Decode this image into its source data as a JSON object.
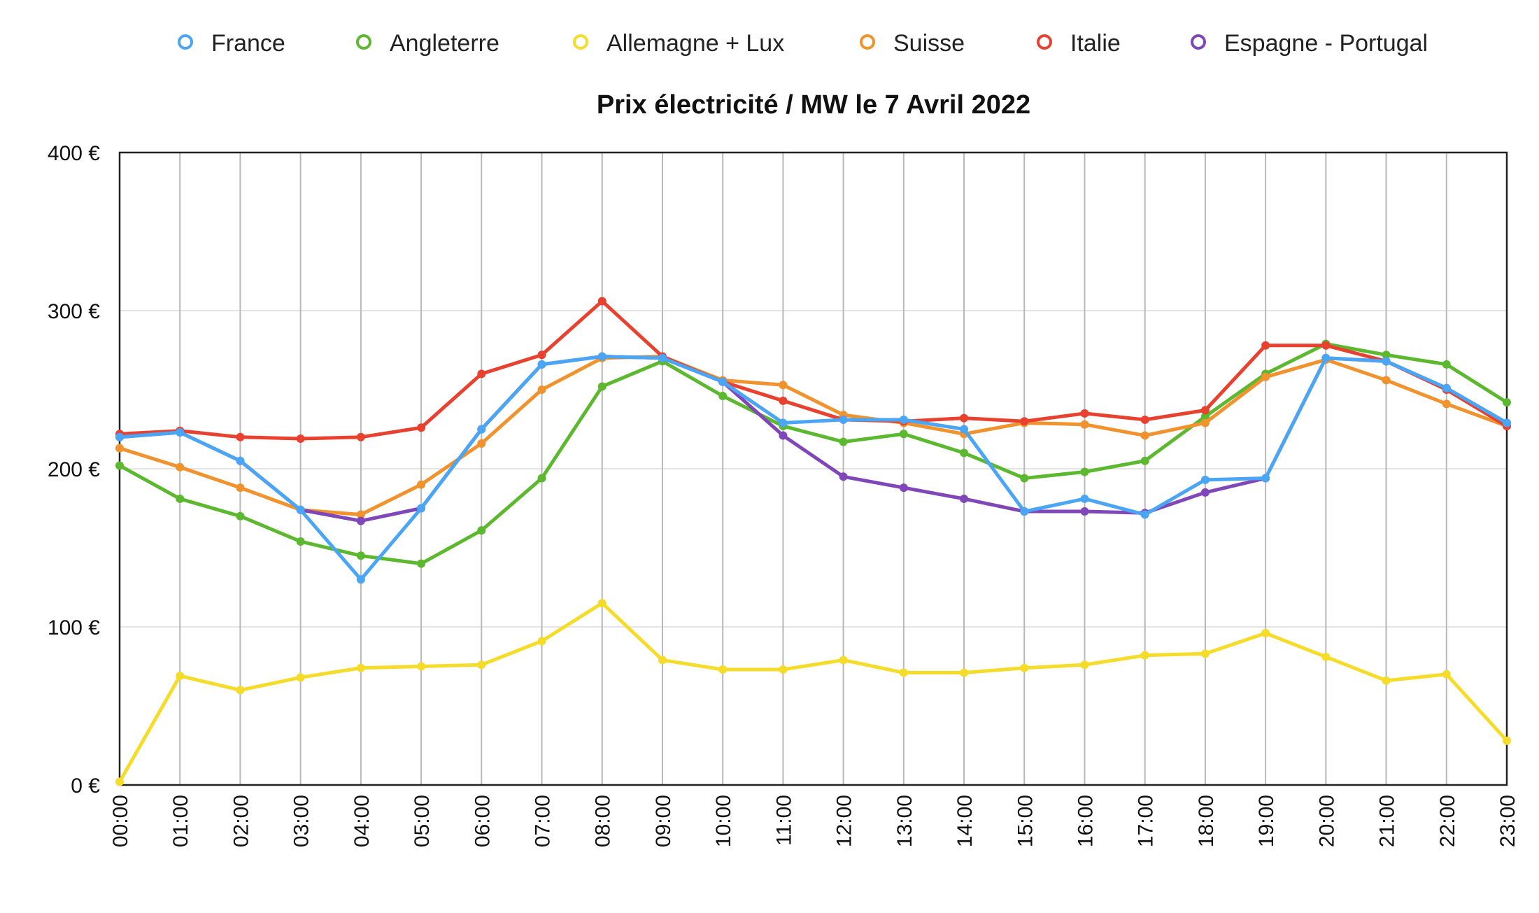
{
  "chart_data": {
    "type": "line",
    "title": "Prix électricité / MW le 7 Avril 2022",
    "xlabel": "",
    "ylabel": "",
    "ylim": [
      0,
      400
    ],
    "yticks": [
      0,
      100,
      200,
      300,
      400
    ],
    "ytick_labels": [
      "0 €",
      "100 €",
      "200 €",
      "300 €",
      "400 €"
    ],
    "grid": true,
    "legend_position": "top",
    "categories": [
      "00:00",
      "01:00",
      "02:00",
      "03:00",
      "04:00",
      "05:00",
      "06:00",
      "07:00",
      "08:00",
      "09:00",
      "10:00",
      "11:00",
      "12:00",
      "13:00",
      "14:00",
      "15:00",
      "16:00",
      "17:00",
      "18:00",
      "19:00",
      "20:00",
      "21:00",
      "22:00",
      "23:00"
    ],
    "series": [
      {
        "name": "Angleterre",
        "color": "#5cb82e",
        "values": [
          202,
          181,
          170,
          154,
          145,
          140,
          161,
          194,
          252,
          268,
          246,
          227,
          217,
          222,
          210,
          194,
          198,
          205,
          233,
          260,
          279,
          272,
          266,
          242
        ]
      },
      {
        "name": "Allemagne + Lux",
        "color": "#f5dc2a",
        "values": [
          2,
          69,
          60,
          68,
          74,
          75,
          76,
          91,
          115,
          79,
          73,
          73,
          79,
          71,
          71,
          74,
          76,
          82,
          83,
          96,
          81,
          66,
          70,
          28
        ]
      },
      {
        "name": "Suisse",
        "color": "#f0922e",
        "values": [
          213,
          201,
          188,
          174,
          171,
          190,
          216,
          250,
          270,
          271,
          256,
          253,
          234,
          229,
          222,
          229,
          228,
          221,
          229,
          258,
          269,
          256,
          241,
          227
        ]
      },
      {
        "name": "Italie",
        "color": "#e8412f",
        "values": [
          222,
          224,
          220,
          219,
          220,
          226,
          260,
          272,
          306,
          271,
          255,
          243,
          231,
          230,
          232,
          230,
          235,
          231,
          237,
          278,
          278,
          268,
          250,
          227
        ]
      },
      {
        "name": "Espagne - Portugal",
        "color": "#7f47b8",
        "values": [
          220,
          223,
          205,
          174,
          167,
          175,
          225,
          266,
          271,
          270,
          255,
          221,
          195,
          188,
          181,
          173,
          173,
          172,
          185,
          194,
          270,
          268,
          251,
          229
        ]
      },
      {
        "name": "France",
        "color": "#4aa6f5",
        "values": [
          220,
          223,
          205,
          174,
          130,
          175,
          225,
          266,
          271,
          270,
          255,
          229,
          231,
          231,
          225,
          173,
          181,
          171,
          193,
          194,
          270,
          268,
          251,
          229
        ]
      }
    ],
    "legend_order": [
      "France",
      "Angleterre",
      "Allemagne + Lux",
      "Suisse",
      "Italie",
      "Espagne - Portugal"
    ]
  }
}
